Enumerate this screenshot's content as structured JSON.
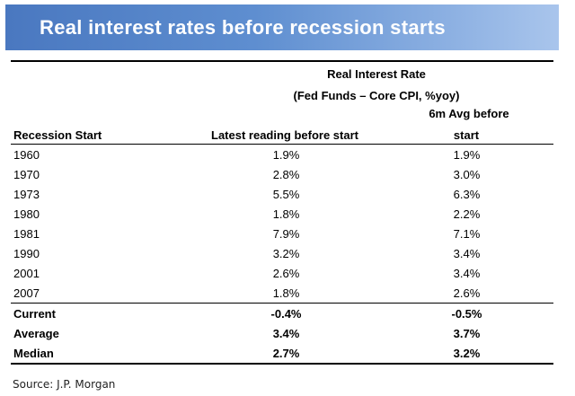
{
  "header": {
    "title": "Real interest rates before recession starts"
  },
  "chart_data": {
    "type": "table",
    "group_header_line1": "Real Interest Rate",
    "group_header_line2": "(Fed Funds – Core CPI, %yoy)",
    "columns": [
      "Recession Start",
      "Latest reading before start",
      "6m Avg before start"
    ],
    "col2_line1": "6m Avg before",
    "col2_line2": "start",
    "rows": [
      [
        "1960",
        "1.9%",
        "1.9%"
      ],
      [
        "1970",
        "2.8%",
        "3.0%"
      ],
      [
        "1973",
        "5.5%",
        "6.3%"
      ],
      [
        "1980",
        "1.8%",
        "2.2%"
      ],
      [
        "1981",
        "7.9%",
        "7.1%"
      ],
      [
        "1990",
        "3.2%",
        "3.4%"
      ],
      [
        "2001",
        "2.6%",
        "3.4%"
      ],
      [
        "2007",
        "1.8%",
        "2.6%"
      ]
    ],
    "summary_rows": [
      [
        "Current",
        "-0.4%",
        "-0.5%"
      ],
      [
        "Average",
        "3.4%",
        "3.7%"
      ],
      [
        "Median",
        "2.7%",
        "3.2%"
      ]
    ]
  },
  "footer": {
    "source": "Source:  J.P. Morgan"
  }
}
